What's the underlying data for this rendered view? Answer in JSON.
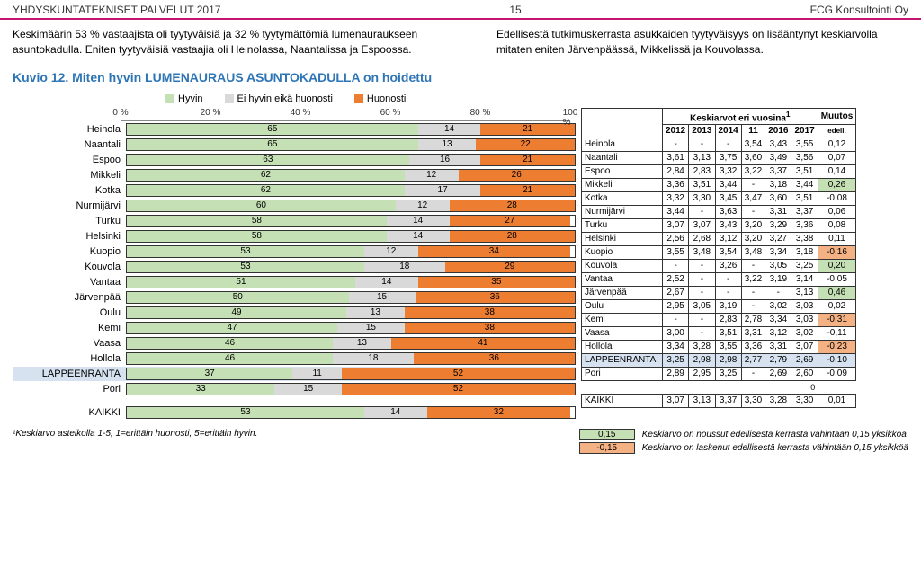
{
  "header": {
    "left": "YHDYSKUNTATEKNISET PALVELUT 2017",
    "mid": "15",
    "right": "FCG Konsultointi Oy"
  },
  "intro": {
    "left": "Keskimäärin  53 % vastaajista oli tyytyväisiä ja 32 % tyytymättömiä lumenauraukseen asuntokadulla. Eniten tyytyväisiä vastaajia oli Heinolassa, Naantalissa ja Espoossa.",
    "right": "Edellisestä tutkimuskerrasta asukkaiden tyytyväisyys on lisääntynyt keskiarvolla mitaten eniten Järvenpäässä, Mikkelissä ja Kouvolassa."
  },
  "chart": {
    "title": "Kuvio 12. Miten hyvin LUMENAURAUS ASUNTOKADULLA on hoidettu",
    "legend": [
      "Hyvin",
      "Ei hyvin eikä huonosti",
      "Huonosti"
    ],
    "colors": {
      "good": "#c5e0b4",
      "neutral": "#d9d9d9",
      "bad": "#ed7d31",
      "border": "#333"
    },
    "axis": [
      "0 %",
      "20 %",
      "40 %",
      "60 %",
      "80 %",
      "100 %"
    ],
    "rows": [
      {
        "name": "Heinola",
        "v": [
          65,
          14,
          21
        ]
      },
      {
        "name": "Naantali",
        "v": [
          65,
          13,
          22
        ]
      },
      {
        "name": "Espoo",
        "v": [
          63,
          16,
          21
        ]
      },
      {
        "name": "Mikkeli",
        "v": [
          62,
          12,
          26
        ]
      },
      {
        "name": "Kotka",
        "v": [
          62,
          17,
          21
        ]
      },
      {
        "name": "Nurmijärvi",
        "v": [
          60,
          12,
          28
        ]
      },
      {
        "name": "Turku",
        "v": [
          58,
          14,
          27
        ]
      },
      {
        "name": "Helsinki",
        "v": [
          58,
          14,
          28
        ]
      },
      {
        "name": "Kuopio",
        "v": [
          53,
          12,
          34
        ]
      },
      {
        "name": "Kouvola",
        "v": [
          53,
          18,
          29
        ]
      },
      {
        "name": "Vantaa",
        "v": [
          51,
          14,
          35
        ]
      },
      {
        "name": "Järvenpää",
        "v": [
          50,
          15,
          36
        ]
      },
      {
        "name": "Oulu",
        "v": [
          49,
          13,
          38
        ]
      },
      {
        "name": "Kemi",
        "v": [
          47,
          15,
          38
        ]
      },
      {
        "name": "Vaasa",
        "v": [
          46,
          13,
          41
        ]
      },
      {
        "name": "Hollola",
        "v": [
          46,
          18,
          36
        ]
      },
      {
        "name": "LAPPEENRANTA",
        "v": [
          37,
          11,
          52
        ],
        "hl": true
      },
      {
        "name": "Pori",
        "v": [
          33,
          15,
          52
        ]
      }
    ],
    "total": {
      "name": "KAIKKI",
      "v": [
        53,
        14,
        32
      ]
    }
  },
  "table": {
    "head1": "Keskiarvot eri vuosina",
    "head1_sup": "1",
    "head2": "Muutos",
    "years": [
      "2012",
      "2013",
      "2014",
      "11",
      "2016",
      "2017"
    ],
    "edell": "edell.",
    "rows": [
      {
        "n": "Heinola",
        "c": [
          "-",
          "-",
          "-",
          "3,54",
          "3,43",
          "3,55"
        ],
        "d": "0,12"
      },
      {
        "n": "Naantali",
        "c": [
          "3,61",
          "3,13",
          "3,75",
          "3,60",
          "3,49",
          "3,56"
        ],
        "d": "0,07"
      },
      {
        "n": "Espoo",
        "c": [
          "2,84",
          "2,83",
          "3,32",
          "3,22",
          "3,37",
          "3,51"
        ],
        "d": "0,14"
      },
      {
        "n": "Mikkeli",
        "c": [
          "3,36",
          "3,51",
          "3,44",
          "-",
          "3,18",
          "3,44"
        ],
        "d": "0,26",
        "up": true
      },
      {
        "n": "Kotka",
        "c": [
          "3,32",
          "3,30",
          "3,45",
          "3,47",
          "3,60",
          "3,51"
        ],
        "d": "-0,08"
      },
      {
        "n": "Nurmijärvi",
        "c": [
          "3,44",
          "-",
          "3,63",
          "-",
          "3,31",
          "3,37"
        ],
        "d": "0,06"
      },
      {
        "n": "Turku",
        "c": [
          "3,07",
          "3,07",
          "3,43",
          "3,20",
          "3,29",
          "3,36"
        ],
        "d": "0,08"
      },
      {
        "n": "Helsinki",
        "c": [
          "2,56",
          "2,68",
          "3,12",
          "3,20",
          "3,27",
          "3,38"
        ],
        "d": "0,11"
      },
      {
        "n": "Kuopio",
        "c": [
          "3,55",
          "3,48",
          "3,54",
          "3,48",
          "3,34",
          "3,18"
        ],
        "d": "-0,16",
        "dn": true
      },
      {
        "n": "Kouvola",
        "c": [
          "-",
          "-",
          "3,26",
          "-",
          "3,05",
          "3,25"
        ],
        "d": "0,20",
        "up": true
      },
      {
        "n": "Vantaa",
        "c": [
          "2,52",
          "-",
          "-",
          "3,22",
          "3,19",
          "3,14"
        ],
        "d": "-0,05"
      },
      {
        "n": "Järvenpää",
        "c": [
          "2,67",
          "-",
          "-",
          "-",
          "-",
          "3,13"
        ],
        "d": "0,46",
        "up": true
      },
      {
        "n": "Oulu",
        "c": [
          "2,95",
          "3,05",
          "3,19",
          "-",
          "3,02",
          "3,03"
        ],
        "d": "0,02"
      },
      {
        "n": "Kemi",
        "c": [
          "-",
          "-",
          "2,83",
          "2,78",
          "3,34",
          "3,03"
        ],
        "d": "-0,31",
        "dn": true
      },
      {
        "n": "Vaasa",
        "c": [
          "3,00",
          "-",
          "3,51",
          "3,31",
          "3,12",
          "3,02"
        ],
        "d": "-0,11"
      },
      {
        "n": "Hollola",
        "c": [
          "3,34",
          "3,28",
          "3,55",
          "3,36",
          "3,31",
          "3,07"
        ],
        "d": "-0,23",
        "dn": true
      },
      {
        "n": "LAPPEENRANTA",
        "c": [
          "3,25",
          "2,98",
          "2,98",
          "2,77",
          "2,79",
          "2,69"
        ],
        "d": "-0,10",
        "hl": true
      },
      {
        "n": "Pori",
        "c": [
          "2,89",
          "2,95",
          "3,25",
          "-",
          "2,69",
          "2,60"
        ],
        "d": "-0,09"
      }
    ],
    "zero": "0",
    "total": {
      "n": "KAIKKI",
      "c": [
        "3,07",
        "3,13",
        "3,37",
        "3,30",
        "3,28",
        "3,30"
      ],
      "d": "0,01"
    }
  },
  "footnote": "¹Keskiarvo asteikolla 1-5, 1=erittäin huonosti, 5=erittäin hyvin.",
  "legend2": {
    "up": {
      "v": "0,15",
      "t": "Keskiarvo on noussut edellisestä kerrasta vähintään 0,15 yksikköä"
    },
    "dn": {
      "v": "-0,15",
      "t": "Keskiarvo on laskenut edellisestä kerrasta vähintään 0,15 yksikköä"
    }
  }
}
